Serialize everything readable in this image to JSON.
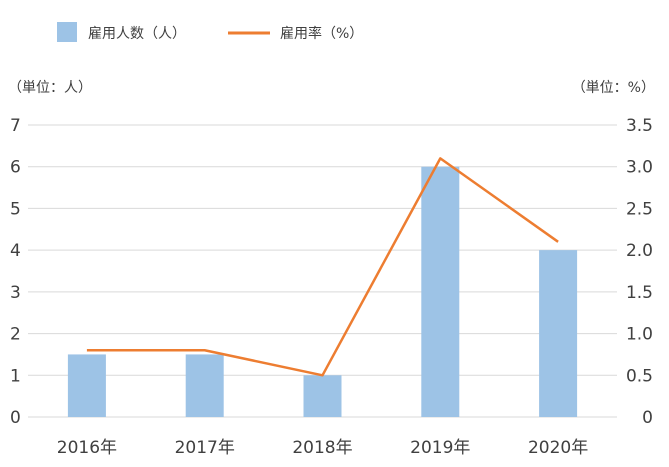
{
  "chart_data": {
    "type": "bar",
    "categories": [
      "2016年",
      "2017年",
      "2018年",
      "2019年",
      "2020年"
    ],
    "series": [
      {
        "name": "雇用人数（人）",
        "type": "bar",
        "axis": "left",
        "color": "#9dc3e6",
        "values": [
          1.5,
          1.5,
          1,
          6,
          4
        ]
      },
      {
        "name": "雇用率（%）",
        "type": "line",
        "axis": "right",
        "color": "#ed7d31",
        "values": [
          0.8,
          0.8,
          0.5,
          3.1,
          2.1
        ]
      }
    ],
    "y_left": {
      "unit_label": "（単位：人）",
      "ylim": [
        0,
        7
      ],
      "ticks": [
        "0",
        "1",
        "2",
        "3",
        "4",
        "5",
        "6",
        "7"
      ]
    },
    "y_right": {
      "unit_label": "（単位：%）",
      "ylim": [
        0,
        3.5
      ],
      "ticks": [
        "0",
        "0.5",
        "1.0",
        "1.5",
        "2.0",
        "2.5",
        "3.0",
        "3.5"
      ]
    },
    "grid": true,
    "legend": "top-left"
  }
}
